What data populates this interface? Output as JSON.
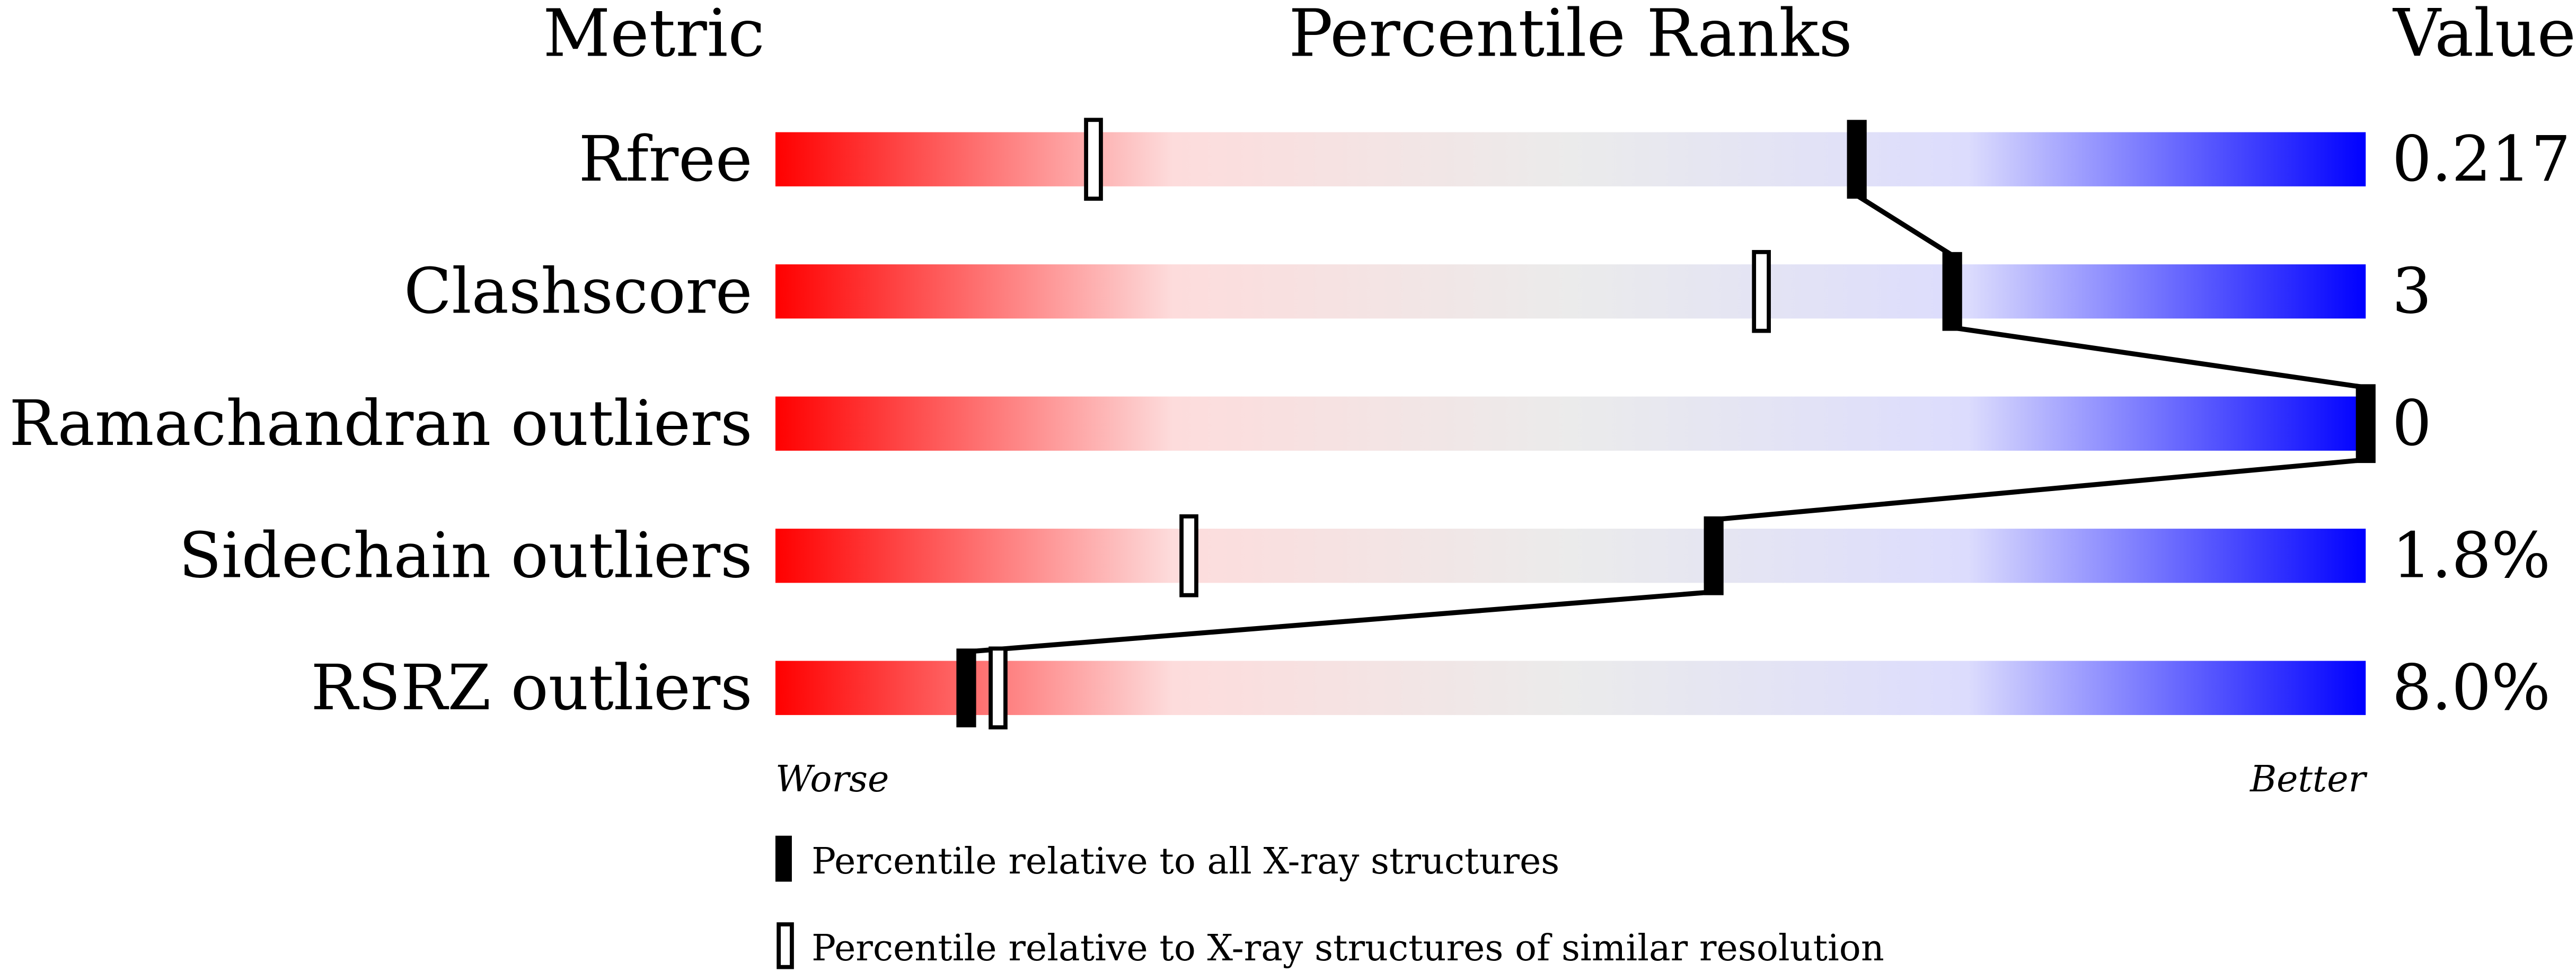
{
  "chart_data": {
    "type": "percentile-bar",
    "headers": {
      "metric": "Metric",
      "ranks": "Percentile Ranks",
      "value": "Value"
    },
    "xlim": [
      0,
      100
    ],
    "axis_labels": {
      "left": "Worse",
      "right": "Better"
    },
    "gradient_colors": [
      "#ff0000",
      "#fddcdc",
      "#ebebeb",
      "#dcdcfd",
      "#0000ff"
    ],
    "rows": [
      {
        "metric": "Rfree",
        "value": "0.217",
        "percentile_all": 68,
        "percentile_similar": 20
      },
      {
        "metric": "Clashscore",
        "value": "3",
        "percentile_all": 74,
        "percentile_similar": 62
      },
      {
        "metric": "Ramachandran outliers",
        "value": "0",
        "percentile_all": 100,
        "percentile_similar": 100
      },
      {
        "metric": "Sidechain outliers",
        "value": "1.8%",
        "percentile_all": 59,
        "percentile_similar": 26
      },
      {
        "metric": "RSRZ outliers",
        "value": "8.0%",
        "percentile_all": 12,
        "percentile_similar": 14
      }
    ],
    "legend": [
      {
        "marker": "filled",
        "label": "Percentile relative to all X-ray structures"
      },
      {
        "marker": "open",
        "label": "Percentile relative to X-ray structures of similar resolution"
      }
    ]
  }
}
